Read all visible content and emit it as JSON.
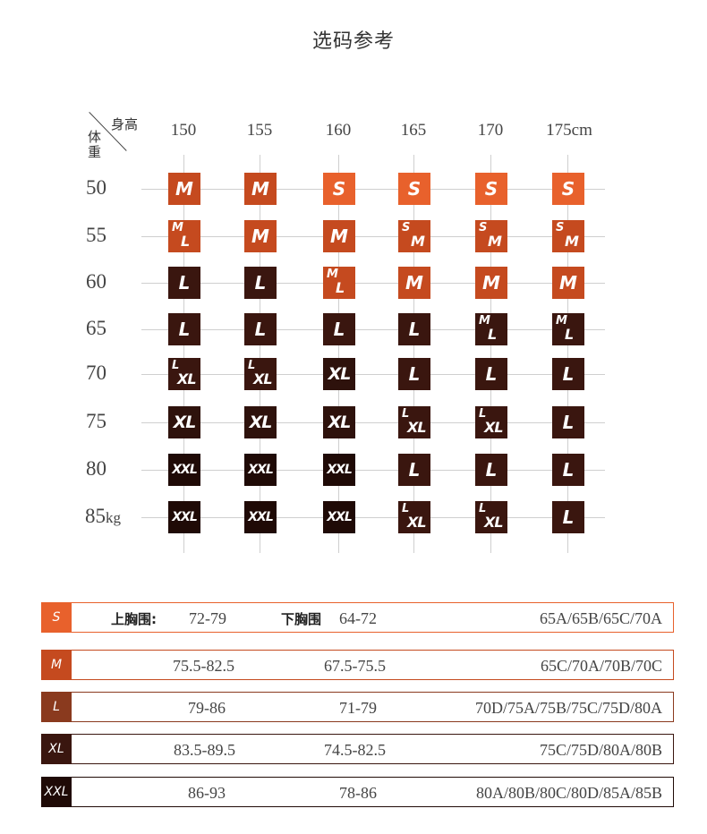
{
  "title": "选码参考",
  "corner": {
    "top": "身高",
    "side": "体重"
  },
  "heights": [
    "150",
    "155",
    "160",
    "165",
    "170",
    "175cm"
  ],
  "weights": [
    {
      "num": "50",
      "unit": ""
    },
    {
      "num": "55",
      "unit": ""
    },
    {
      "num": "60",
      "unit": ""
    },
    {
      "num": "65",
      "unit": ""
    },
    {
      "num": "70",
      "unit": ""
    },
    {
      "num": "75",
      "unit": ""
    },
    {
      "num": "80",
      "unit": ""
    },
    {
      "num": "85",
      "unit": "kg"
    }
  ],
  "colors": {
    "S": "#e8612c",
    "M": "#c54a1f",
    "L": "#3a160f",
    "XL": "#2e120c",
    "XXL": "#1f0a06",
    "grid": "#cfcfcf",
    "bar_S": "#e8612c",
    "bar_M": "#c54a1f",
    "bar_L": "#8a3a1e",
    "bar_XL": "#3a160f",
    "bar_XXL": "#1f0a06"
  },
  "matrix": [
    [
      {
        "s": [
          "M"
        ],
        "k": "M"
      },
      {
        "s": [
          "M"
        ],
        "k": "M"
      },
      {
        "s": [
          "S"
        ],
        "k": "S"
      },
      {
        "s": [
          "S"
        ],
        "k": "S"
      },
      {
        "s": [
          "S"
        ],
        "k": "S"
      },
      {
        "s": [
          "S"
        ],
        "k": "S"
      }
    ],
    [
      {
        "s": [
          "M",
          "L"
        ],
        "k": "M"
      },
      {
        "s": [
          "M"
        ],
        "k": "M"
      },
      {
        "s": [
          "M"
        ],
        "k": "M"
      },
      {
        "s": [
          "S",
          "M"
        ],
        "k": "M"
      },
      {
        "s": [
          "S",
          "M"
        ],
        "k": "M"
      },
      {
        "s": [
          "S",
          "M"
        ],
        "k": "M"
      }
    ],
    [
      {
        "s": [
          "L"
        ],
        "k": "L"
      },
      {
        "s": [
          "L"
        ],
        "k": "L"
      },
      {
        "s": [
          "M",
          "L"
        ],
        "k": "M"
      },
      {
        "s": [
          "M"
        ],
        "k": "M"
      },
      {
        "s": [
          "M"
        ],
        "k": "M"
      },
      {
        "s": [
          "M"
        ],
        "k": "M"
      }
    ],
    [
      {
        "s": [
          "L"
        ],
        "k": "L"
      },
      {
        "s": [
          "L"
        ],
        "k": "L"
      },
      {
        "s": [
          "L"
        ],
        "k": "L"
      },
      {
        "s": [
          "L"
        ],
        "k": "L"
      },
      {
        "s": [
          "M",
          "L"
        ],
        "k": "L"
      },
      {
        "s": [
          "M",
          "L"
        ],
        "k": "L"
      }
    ],
    [
      {
        "s": [
          "L",
          "XL"
        ],
        "k": "L"
      },
      {
        "s": [
          "L",
          "XL"
        ],
        "k": "L"
      },
      {
        "s": [
          "XL"
        ],
        "k": "XL"
      },
      {
        "s": [
          "L"
        ],
        "k": "L"
      },
      {
        "s": [
          "L"
        ],
        "k": "L"
      },
      {
        "s": [
          "L"
        ],
        "k": "L"
      }
    ],
    [
      {
        "s": [
          "XL"
        ],
        "k": "XL"
      },
      {
        "s": [
          "XL"
        ],
        "k": "XL"
      },
      {
        "s": [
          "XL"
        ],
        "k": "XL"
      },
      {
        "s": [
          "L",
          "XL"
        ],
        "k": "L"
      },
      {
        "s": [
          "L",
          "XL"
        ],
        "k": "L"
      },
      {
        "s": [
          "L"
        ],
        "k": "L"
      }
    ],
    [
      {
        "s": [
          "XXL"
        ],
        "k": "XXL"
      },
      {
        "s": [
          "XXL"
        ],
        "k": "XXL"
      },
      {
        "s": [
          "XXL"
        ],
        "k": "XXL"
      },
      {
        "s": [
          "L"
        ],
        "k": "L"
      },
      {
        "s": [
          "L"
        ],
        "k": "L"
      },
      {
        "s": [
          "L"
        ],
        "k": "L"
      }
    ],
    [
      {
        "s": [
          "XXL"
        ],
        "k": "XXL"
      },
      {
        "s": [
          "XXL"
        ],
        "k": "XXL"
      },
      {
        "s": [
          "XXL"
        ],
        "k": "XXL"
      },
      {
        "s": [
          "L",
          "XL"
        ],
        "k": "L"
      },
      {
        "s": [
          "L",
          "XL"
        ],
        "k": "L"
      },
      {
        "s": [
          "L"
        ],
        "k": "L"
      }
    ]
  ],
  "size_table": {
    "upper_label": "上胸围:",
    "lower_label": "下胸围",
    "rows": [
      {
        "size": "S",
        "upper": "72-79",
        "lower": "64-72",
        "bra": "65A/65B/65C/70A"
      },
      {
        "size": "M",
        "upper": "75.5-82.5",
        "lower": "67.5-75.5",
        "bra": "65C/70A/70B/70C"
      },
      {
        "size": "L",
        "upper": "79-86",
        "lower": "71-79",
        "bra": "70D/75A/75B/75C/75D/80A"
      },
      {
        "size": "XL",
        "upper": "83.5-89.5",
        "lower": "74.5-82.5",
        "bra": "75C/75D/80A/80B"
      },
      {
        "size": "XXL",
        "upper": "86-93",
        "lower": "78-86",
        "bra": "80A/80B/80C/80D/85A/85B"
      }
    ]
  }
}
